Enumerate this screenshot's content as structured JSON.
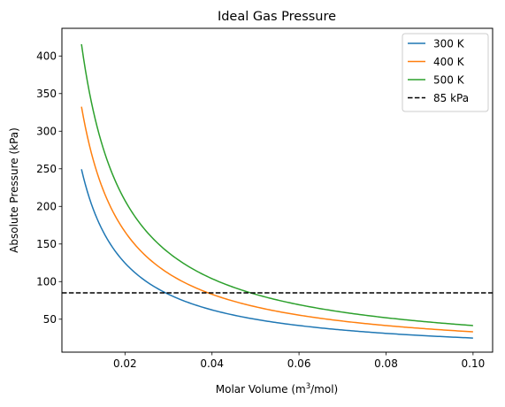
{
  "chart_data": {
    "type": "line",
    "title": "Ideal Gas Pressure",
    "xlabel": "Molar Volume (m³/mol)",
    "xlabel_parts": {
      "before": "Molar Volume (m",
      "sup": "3",
      "after": "/mol)"
    },
    "ylabel": "Absolute Pressure (kPa)",
    "xlim": [
      0.0055,
      0.1045
    ],
    "ylim": [
      6.2,
      436.8
    ],
    "x_ticks": [
      0.02,
      0.04,
      0.06,
      0.08,
      0.1
    ],
    "x_tick_labels": [
      "0.02",
      "0.04",
      "0.06",
      "0.08",
      "0.10"
    ],
    "y_ticks": [
      50,
      100,
      150,
      200,
      250,
      300,
      350,
      400
    ],
    "y_tick_labels": [
      "50",
      "100",
      "150",
      "200",
      "250",
      "300",
      "350",
      "400"
    ],
    "grid": false,
    "legend_position": "top-right",
    "curve_form": "P = k / V",
    "x_range": [
      0.01,
      0.1
    ],
    "series": [
      {
        "name": "300 K",
        "color": "#1f77b4",
        "k": 2.4942,
        "y_at_x_min": 249.4,
        "y_at_x_max": 24.9
      },
      {
        "name": "400 K",
        "color": "#ff7f0e",
        "k": 3.3256,
        "y_at_x_min": 332.6,
        "y_at_x_max": 33.3
      },
      {
        "name": "500 K",
        "color": "#2ca02c",
        "k": 4.157,
        "y_at_x_min": 415.7,
        "y_at_x_max": 41.6
      }
    ],
    "reference_line": {
      "name": "85 kPa",
      "value": 85,
      "color": "#000000",
      "style": "dashed"
    }
  }
}
